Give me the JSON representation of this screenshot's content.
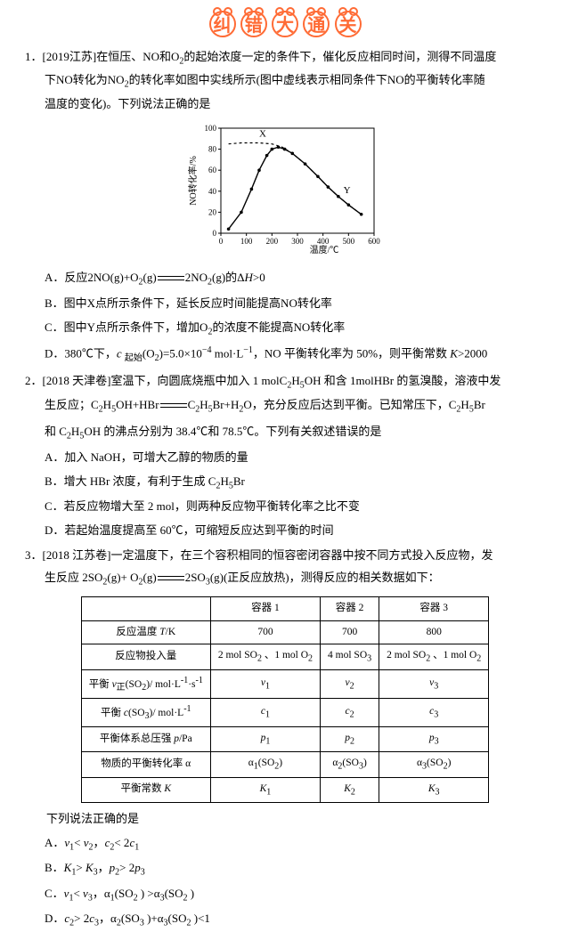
{
  "title_chars": [
    "纠",
    "错",
    "大",
    "通",
    "关"
  ],
  "q1": {
    "num": "1．",
    "source": "[2019江苏]",
    "stem1": "在恒压、NO和O",
    "stem2": "的起始浓度一定的条件下，催化反应相同时间，测得不同温度",
    "stem3": "下NO转化为NO",
    "stem4": "的转化率如图中实线所示(图中虚线表示相同条件下NO的平衡转化率随",
    "stem5": "温度的变化)。下列说法正确的是",
    "chart": {
      "ylabel": "NO转化率/%",
      "xlabel": "温度/℃",
      "ymin": 0,
      "ymax": 100,
      "ystep": 20,
      "xmin": 0,
      "xmax": 600,
      "xstep": 100,
      "dashed_curve": [
        [
          30,
          85
        ],
        [
          80,
          86
        ],
        [
          150,
          86
        ],
        [
          200,
          85
        ],
        [
          240,
          82
        ],
        [
          280,
          76
        ],
        [
          330,
          66
        ],
        [
          380,
          54
        ],
        [
          420,
          44
        ],
        [
          460,
          35
        ],
        [
          500,
          27
        ],
        [
          550,
          18
        ]
      ],
      "solid_curve": [
        [
          30,
          4
        ],
        [
          80,
          20
        ],
        [
          120,
          42
        ],
        [
          150,
          60
        ],
        [
          180,
          74
        ],
        [
          200,
          80
        ],
        [
          225,
          82
        ],
        [
          250,
          80
        ],
        [
          280,
          76
        ],
        [
          330,
          66
        ],
        [
          380,
          54
        ],
        [
          420,
          44
        ],
        [
          460,
          35
        ],
        [
          500,
          27
        ],
        [
          550,
          18
        ]
      ],
      "label_x": "X",
      "label_y": "Y"
    },
    "optA1": "A．反应2NO(g)+O",
    "optA2": "(g)",
    "optA3": "2NO",
    "optA4": "(g)的Δ",
    "optA5": ">0",
    "optB": "B．图中X点所示条件下，延长反应时间能提高NO转化率",
    "optC1": "C．图中Y点所示条件下，增加O",
    "optC2": "的浓度不能提高NO转化率",
    "optD1": "D．380℃下，",
    "optD2": "(O",
    "optD3": ")=5.0×10",
    "optD4": " mol·L",
    "optD5": "，NO 平衡转化率为 50%，则平衡常数 ",
    "optD6": ">2000"
  },
  "q2": {
    "num": "2．",
    "source": "[2018 天津卷]",
    "stem1": "室温下，向圆底烧瓶中加入 1 molC",
    "stem2": "OH 和含 1molHBr 的氢溴酸，溶液中发",
    "stem3": "生反应；C",
    "stem4": "OH+HBr",
    "stem5": "C",
    "stem6": "Br+H",
    "stem7": "O，充分反应后达到平衡。已知常压下，C",
    "stem8": "Br",
    "stem9": "和 C",
    "stem10": "OH 的沸点分别为 38.4℃和 78.5℃。下列有关叙述错误的是",
    "optA": "A．加入 NaOH，可增大乙醇的物质的量",
    "optB1": "B．增大 HBr 浓度，有利于生成 C",
    "optB2": "Br",
    "optC": "C．若反应物增大至 2 mol，则两种反应物平衡转化率之比不变",
    "optD": "D．若起始温度提高至 60℃，可缩短反应达到平衡的时间"
  },
  "q3": {
    "num": "3．",
    "source": "[2018 江苏卷]",
    "stem1": "一定温度下，在三个容积相同的恒容密闭容器中按不同方式投入反应物，发",
    "stem2": "生反应 2SO",
    "stem3": "(g)+ O",
    "stem4": "(g)",
    "stem5": "2SO",
    "stem6": "(g)(正反应放热)，测得反应的相关数据如下：",
    "table": {
      "headers": [
        "",
        "容器 1",
        "容器 2",
        "容器 3"
      ],
      "rows": [
        [
          "反应温度 T/K",
          "700",
          "700",
          "800"
        ],
        [
          "反应物投入量",
          "2 mol SO₂ 、1 mol O₂",
          "4 mol SO₃",
          "2 mol SO₂ 、1 mol O₂"
        ],
        [
          "平衡 v_正(SO₂)/ mol·L⁻¹·s⁻¹",
          "v₁",
          "v₂",
          "v₃"
        ],
        [
          "平衡 c(SO₃)/ mol·L⁻¹",
          "c₁",
          "c₂",
          "c₃"
        ],
        [
          "平衡体系总压强 p/Pa",
          "p₁",
          "p₂",
          "p₃"
        ],
        [
          "物质的平衡转化率 α",
          "α₁(SO₂)",
          "α₂(SO₃)",
          "α₃(SO₂)"
        ],
        [
          "平衡常数 K",
          "K₁",
          "K₂",
          "K₃"
        ]
      ]
    },
    "after": "下列说法正确的是",
    "optA": "A．v₁< v₂，c₂< 2c₁",
    "optB": "B．K₁> K₃，p₂> 2p₃",
    "optC": "C．v₁< v₃，α₁(SO₂ ) >α₃(SO₂ )",
    "optD": "D．c₂> 2c₃，α₂(SO₃ )+α₃(SO₂ )<1"
  }
}
